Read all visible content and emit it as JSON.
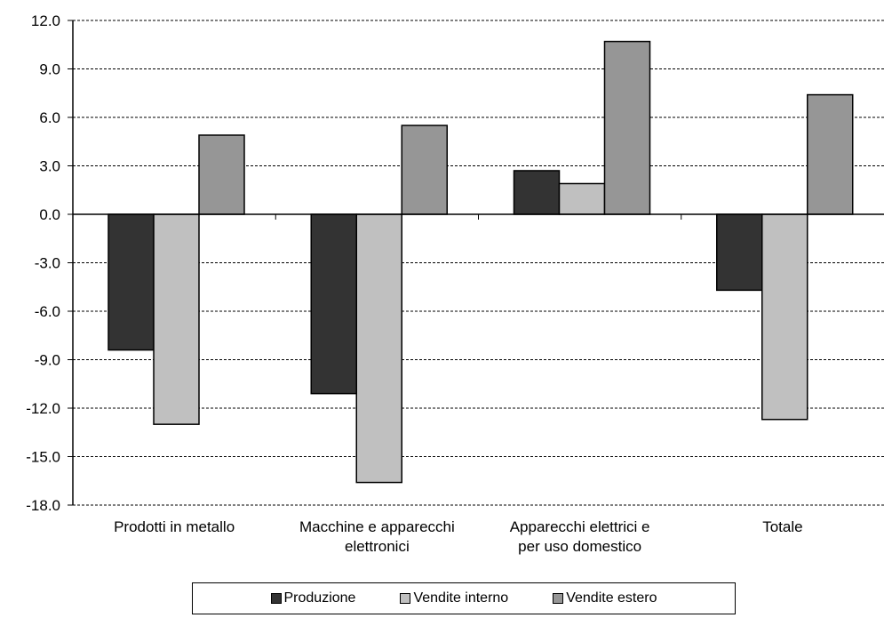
{
  "chart_data": {
    "type": "bar",
    "categories": [
      [
        "Prodotti in metallo"
      ],
      [
        "Macchine e apparecchi",
        "elettronici"
      ],
      [
        "Apparecchi elettrici e",
        "per uso domestico"
      ],
      [
        "Totale"
      ]
    ],
    "series": [
      {
        "name": "Produzione",
        "color": "#333333",
        "values": [
          -8.4,
          -11.1,
          2.7,
          -4.7
        ]
      },
      {
        "name": "Vendite interno",
        "color": "#c0c0c0",
        "values": [
          -13.0,
          -16.6,
          1.9,
          -12.7
        ]
      },
      {
        "name": "Vendite estero",
        "color": "#969696",
        "values": [
          4.9,
          5.5,
          10.7,
          7.4
        ]
      }
    ],
    "ylim": [
      -18,
      12
    ],
    "yticks": [
      "12.0",
      "9.0",
      "6.0",
      "3.0",
      "0.0",
      "-3.0",
      "-6.0",
      "-9.0",
      "-12.0",
      "-15.0",
      "-18.0"
    ],
    "ytick_values": [
      12,
      9,
      6,
      3,
      0,
      -3,
      -6,
      -9,
      -12,
      -15,
      -18
    ],
    "grid": "horizontal dashed",
    "legend_position": "bottom"
  }
}
